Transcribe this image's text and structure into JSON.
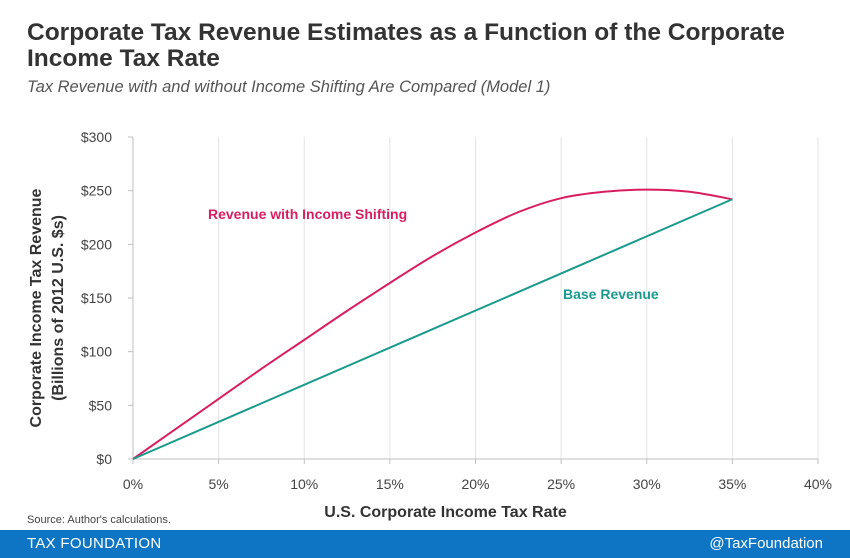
{
  "title": "Corporate Tax Revenue Estimates as a Function of the Corporate Income Tax Rate",
  "subtitle": "Tax Revenue with and without Income Shifting Are Compared (Model 1)",
  "source": "Source: Author's calculations.",
  "footer": {
    "brand": "TAX FOUNDATION",
    "handle": "@TaxFoundation"
  },
  "chart_data": {
    "type": "line",
    "xlabel": "U.S. Corporate Income Tax Rate",
    "ylabel_line1": "Corporate Income Tax Revenue",
    "ylabel_line2": "(Billions of 2012 U.S. $s)",
    "xlim": [
      0,
      40
    ],
    "ylim": [
      0,
      300
    ],
    "x_ticks": [
      0,
      5,
      10,
      15,
      20,
      25,
      30,
      35,
      40
    ],
    "x_tick_labels": [
      "0%",
      "5%",
      "10%",
      "15%",
      "20%",
      "25%",
      "30%",
      "35%",
      "40%"
    ],
    "y_ticks": [
      0,
      50,
      100,
      150,
      200,
      250,
      300
    ],
    "y_tick_labels": [
      "$0",
      "$50",
      "$100",
      "$150",
      "$200",
      "$250",
      "$300"
    ],
    "grid": "vertical",
    "series": [
      {
        "name": "Revenue with Income Shifting",
        "color": "#d81e60",
        "x": [
          0,
          2.5,
          5,
          7.5,
          10,
          12.5,
          15,
          17.5,
          20,
          22.5,
          25,
          27.5,
          30,
          32.5,
          35
        ],
        "y": [
          0,
          28,
          56,
          84,
          111,
          138,
          164,
          189,
          211,
          230,
          243,
          249,
          251,
          249,
          242
        ]
      },
      {
        "name": "Base Revenue",
        "color": "#1a9a8c",
        "x": [
          0,
          35
        ],
        "y": [
          0,
          242
        ]
      }
    ]
  }
}
